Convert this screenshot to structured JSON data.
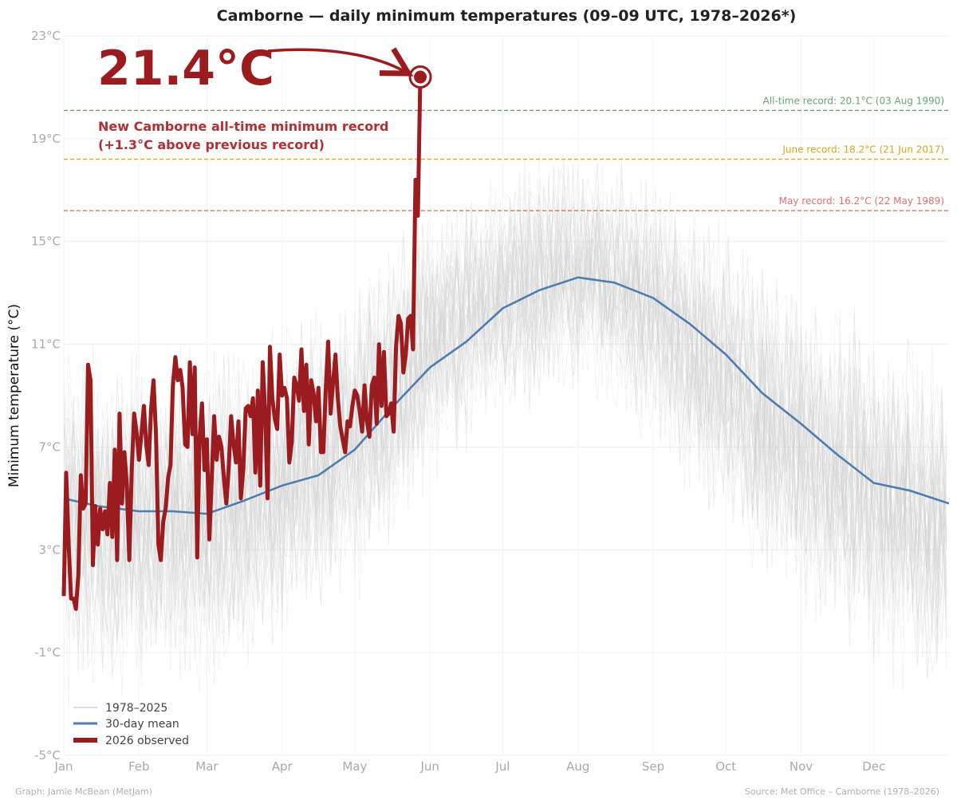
{
  "chart_data": {
    "type": "line",
    "title": "Camborne — daily minimum temperatures (09–09 UTC, 1978–2026*)",
    "ylabel": "Minimum temperature (°C)",
    "xlabel": "",
    "ylim": [
      -5,
      23
    ],
    "xlim": [
      1,
      366
    ],
    "grid": true,
    "legend_placement": "bottom-left",
    "yticks": [
      {
        "value": -5,
        "label": "-5°C"
      },
      {
        "value": -1,
        "label": "-1°C"
      },
      {
        "value": 3,
        "label": "3°C"
      },
      {
        "value": 7,
        "label": "7°C"
      },
      {
        "value": 11,
        "label": "11°C"
      },
      {
        "value": 15,
        "label": "15°C"
      },
      {
        "value": 19,
        "label": "19°C"
      },
      {
        "value": 23,
        "label": "23°C"
      }
    ],
    "xticks": [
      {
        "day": 1,
        "label": "Jan"
      },
      {
        "day": 32,
        "label": "Feb"
      },
      {
        "day": 60,
        "label": "Mar"
      },
      {
        "day": 91,
        "label": "Apr"
      },
      {
        "day": 121,
        "label": "May"
      },
      {
        "day": 152,
        "label": "Jun"
      },
      {
        "day": 182,
        "label": "Jul"
      },
      {
        "day": 213,
        "label": "Aug"
      },
      {
        "day": 244,
        "label": "Sep"
      },
      {
        "day": 274,
        "label": "Oct"
      },
      {
        "day": 305,
        "label": "Nov"
      },
      {
        "day": 335,
        "label": "Dec"
      }
    ],
    "reference_lines": [
      {
        "value": 20.1,
        "label": "All-time record: 20.1°C (03 Aug 1990)",
        "color": "#6aa56a"
      },
      {
        "value": 18.2,
        "label": "June record: 18.2°C (21 Jun 2017)",
        "color": "#d9a520"
      },
      {
        "value": 16.2,
        "label": "May record: 16.2°C (22 May 1989)",
        "color": "#e07070"
      }
    ],
    "series": [
      {
        "name": "1978–2025",
        "color": "#cfcfcf",
        "style": "historical-envelope",
        "envelope": {
          "x": [
            1,
            32,
            60,
            91,
            121,
            152,
            182,
            213,
            244,
            274,
            305,
            335,
            366
          ],
          "low": [
            -3,
            -3,
            -3,
            -1,
            1,
            5,
            8,
            9,
            7,
            3,
            0,
            -2,
            -3
          ],
          "high": [
            11,
            11,
            11,
            12,
            14,
            17,
            18,
            19,
            18,
            16,
            14,
            12,
            11
          ]
        }
      },
      {
        "name": "30-day mean",
        "color": "#4e7db0",
        "x": [
          1,
          15,
          32,
          46,
          60,
          75,
          91,
          106,
          121,
          136,
          152,
          167,
          182,
          197,
          213,
          228,
          244,
          259,
          274,
          289,
          305,
          320,
          335,
          350,
          366
        ],
        "values": [
          5.0,
          4.7,
          4.5,
          4.5,
          4.4,
          4.9,
          5.5,
          5.9,
          6.9,
          8.5,
          10.1,
          11.1,
          12.4,
          13.1,
          13.6,
          13.4,
          12.8,
          11.8,
          10.6,
          9.1,
          7.9,
          6.7,
          5.6,
          5.3,
          4.8
        ]
      },
      {
        "name": "2026 observed",
        "color": "#9b1c1f",
        "x": [
          1,
          2,
          3,
          4,
          5,
          6,
          7,
          8,
          9,
          10,
          11,
          12,
          13,
          14,
          15,
          16,
          17,
          18,
          19,
          20,
          21,
          22,
          23,
          24,
          25,
          26,
          27,
          28,
          29,
          30,
          31,
          32,
          33,
          34,
          35,
          36,
          37,
          38,
          39,
          40,
          41,
          42,
          43,
          44,
          45,
          46,
          47,
          48,
          49,
          50,
          51,
          52,
          53,
          54,
          55,
          56,
          57,
          58,
          59,
          60,
          61,
          62,
          63,
          64,
          65,
          66,
          67,
          68,
          69,
          70,
          71,
          72,
          73,
          74,
          75,
          76,
          77,
          78,
          79,
          80,
          81,
          82,
          83,
          84,
          85,
          86,
          87,
          88,
          89,
          90,
          91,
          92,
          93,
          94,
          95,
          96,
          97,
          98,
          99,
          100,
          101,
          102,
          103,
          104,
          105,
          106,
          107,
          108,
          109,
          110,
          111,
          112,
          113,
          114,
          115,
          116,
          117,
          118,
          119,
          120,
          121,
          122,
          123,
          124,
          125,
          126,
          127,
          128,
          129,
          130,
          131,
          132,
          133,
          134,
          135,
          136,
          137,
          138,
          139,
          140,
          141,
          142,
          143,
          144,
          145,
          146,
          147,
          148
        ],
        "values": [
          1.2,
          6.0,
          3.2,
          1.1,
          1.1,
          0.7,
          2.0,
          5.9,
          4.6,
          4.8,
          10.2,
          9.6,
          2.4,
          4.7,
          3.2,
          4.6,
          3.8,
          4.5,
          3.6,
          5.6,
          3.5,
          6.9,
          2.6,
          8.3,
          4.8,
          6.8,
          5.5,
          2.6,
          6.1,
          8.3,
          7.6,
          6.5,
          7.5,
          8.6,
          7.1,
          6.3,
          8.5,
          9.6,
          7.5,
          3.2,
          2.6,
          4.1,
          4.6,
          5.8,
          6.3,
          9.4,
          10.5,
          9.6,
          10.0,
          9.3,
          7.1,
          7.0,
          10.3,
          7.5,
          10.1,
          2.7,
          7.4,
          8.7,
          6.1,
          7.3,
          3.4,
          5.8,
          8.2,
          6.5,
          7.4,
          7.0,
          5.8,
          4.8,
          6.2,
          8.2,
          7.1,
          6.4,
          8.0,
          5.0,
          6.1,
          8.5,
          8.6,
          8.2,
          8.9,
          6.0,
          9.2,
          5.5,
          10.3,
          8.4,
          5.0,
          10.9,
          8.9,
          8.1,
          7.7,
          10.6,
          9.0,
          9.3,
          8.9,
          6.4,
          7.2,
          9.7,
          9.4,
          8.8,
          10.8,
          8.4,
          10.2,
          7.1,
          9.6,
          9.1,
          8.0,
          9.3,
          6.8,
          6.8,
          9.2,
          11.1,
          8.3,
          9.5,
          10.6,
          8.9,
          7.8,
          7.3,
          6.8,
          8.0,
          7.8,
          8.6,
          9.2,
          9.0,
          8.4,
          7.6,
          9.4,
          8.0,
          7.4,
          9.4,
          9.7,
          7.9,
          11.0,
          8.6,
          10.7,
          8.2,
          8.3,
          8.7,
          7.6,
          10.9,
          12.1,
          11.8,
          9.9,
          10.6,
          12.0,
          12.1,
          10.8,
          17.4,
          16.0,
          21.4
        ]
      }
    ],
    "legend": [
      {
        "label": "1978–2025",
        "color": "#cfcfcf",
        "style": "thin"
      },
      {
        "label": "30-day mean",
        "color": "#4e7db0",
        "style": "medium"
      },
      {
        "label": "2026 observed",
        "color": "#9b1c1f",
        "style": "thick"
      }
    ],
    "annotations": {
      "big_value": "21.4°C",
      "record_line1": "New Camborne all-time minimum record",
      "record_line2": "(+1.3°C above previous record)",
      "highlight_point": {
        "x": 148,
        "y": 21.4
      }
    },
    "credit_left": "Graph: Jamie McBean (MetJam)",
    "credit_right": "Source: Met Office – Camborne (1978–2026)"
  }
}
